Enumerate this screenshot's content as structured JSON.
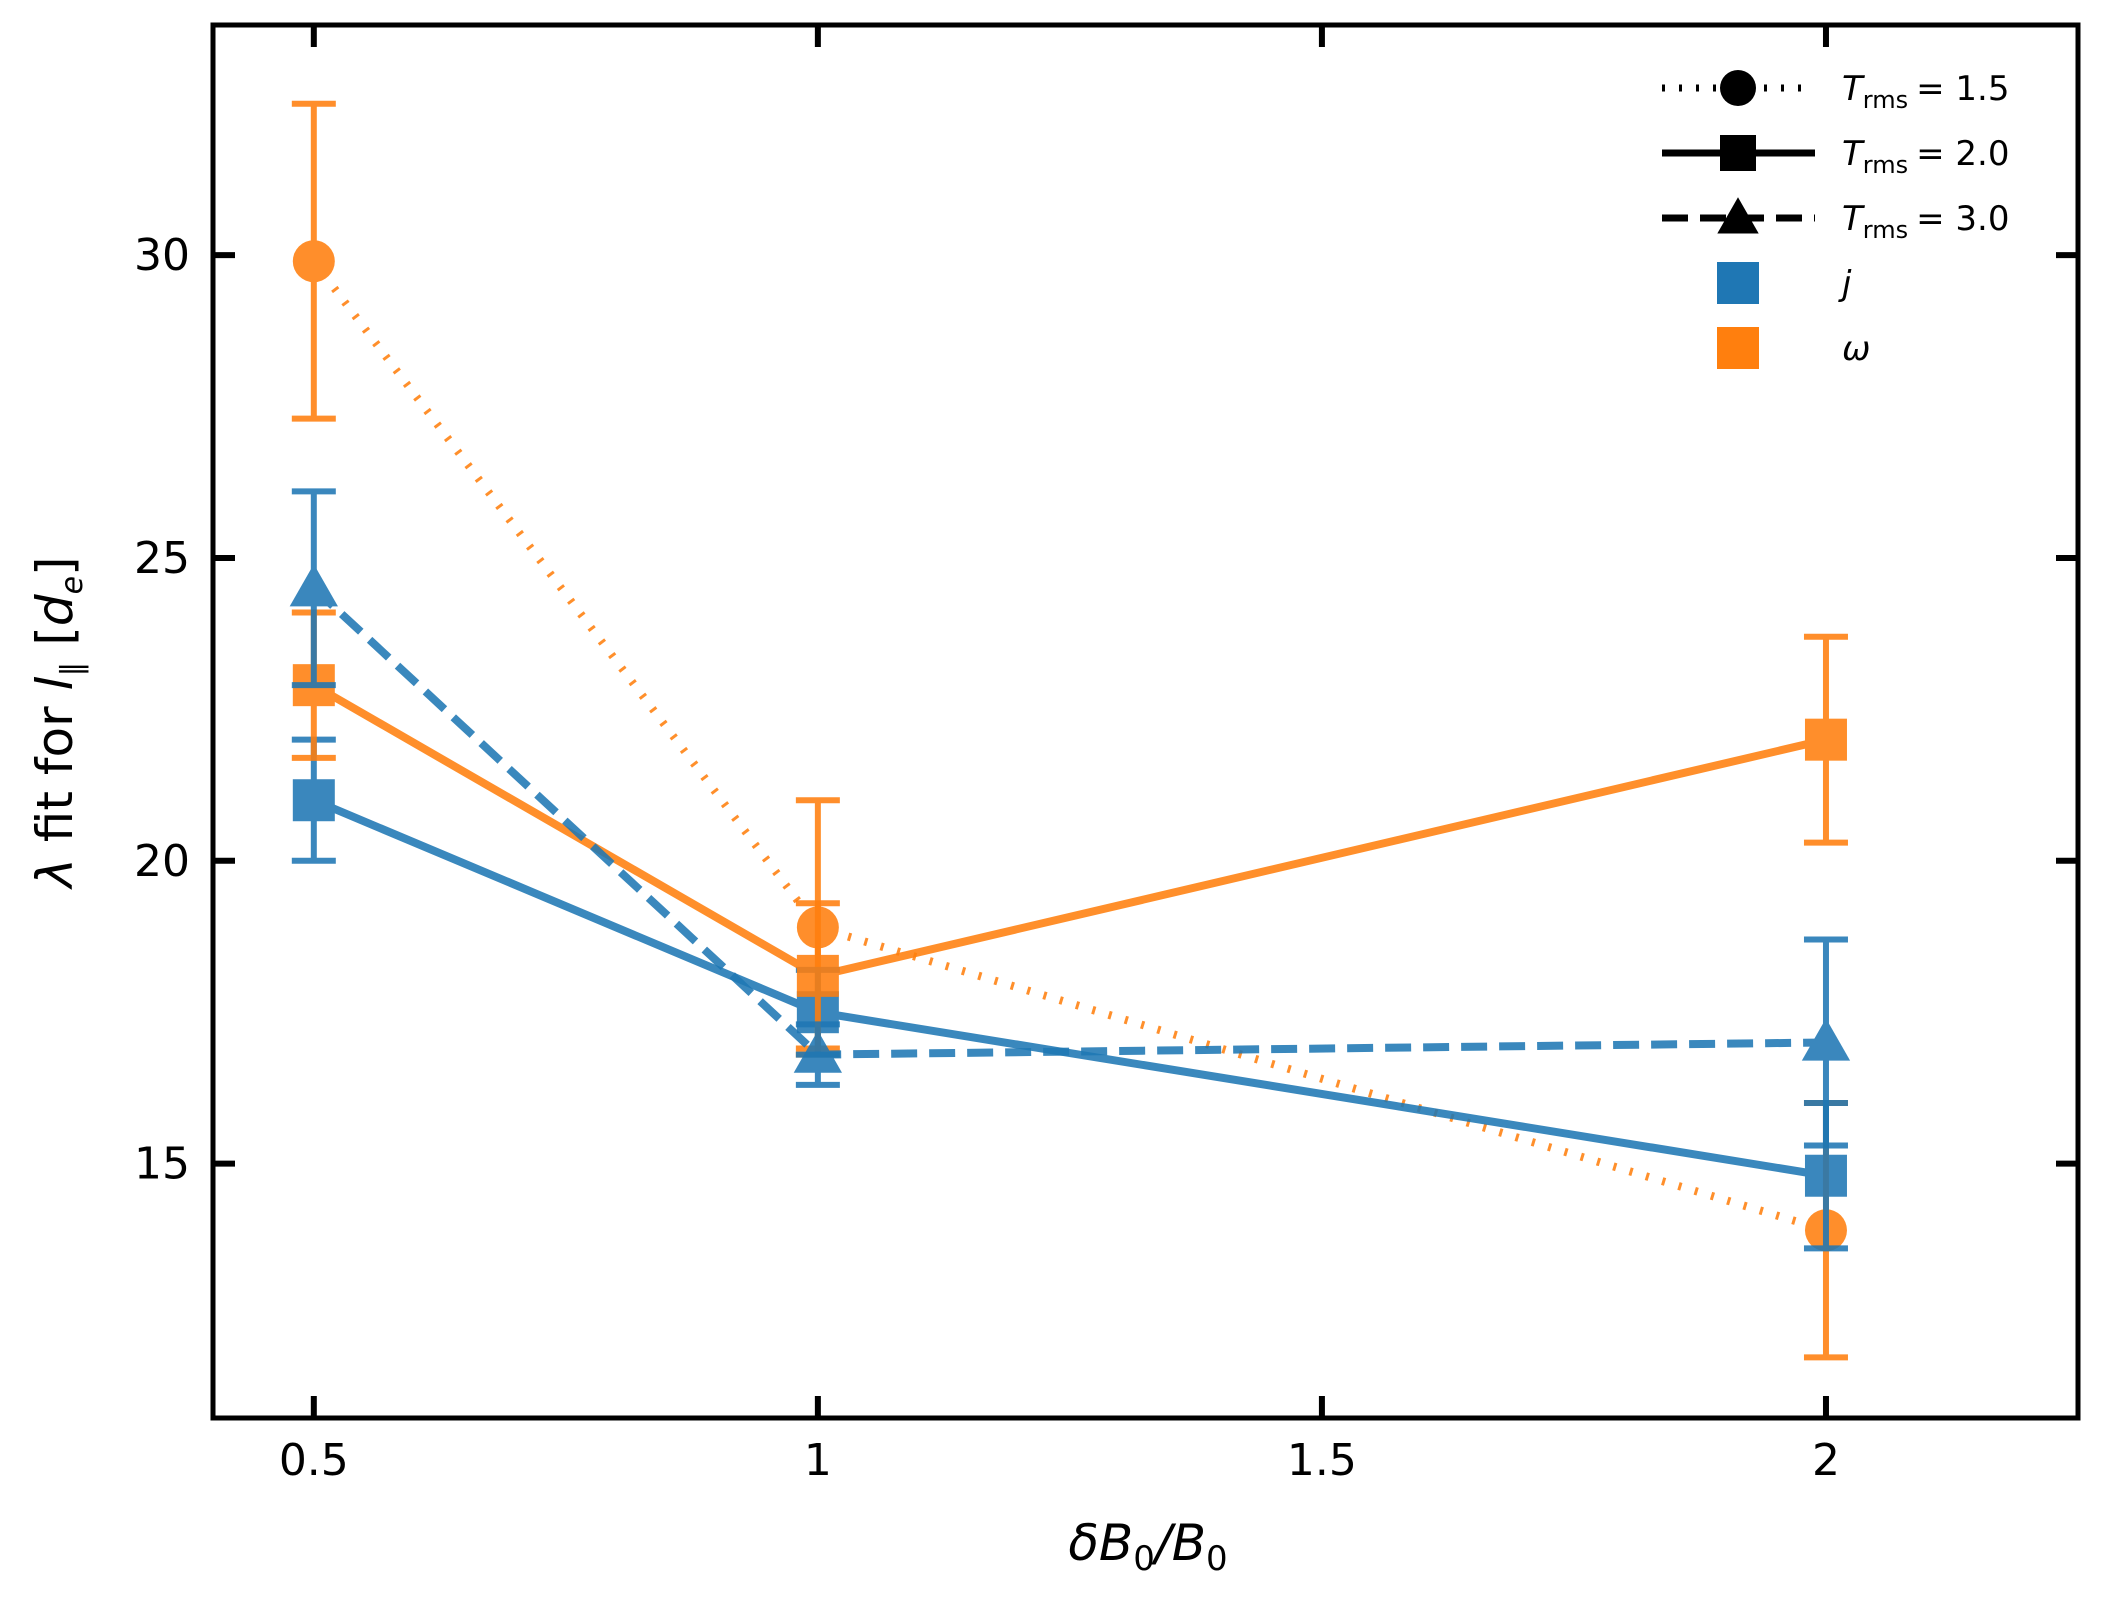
{
  "chart_data": {
    "type": "line",
    "xlabel": "δB0/B0",
    "ylabel": "λ fit for l∥ [de]",
    "xlim": [
      0.4,
      2.25
    ],
    "ylim": [
      10.8,
      33.8
    ],
    "xticks": [
      0.5,
      1,
      1.5,
      2
    ],
    "xtick_labels": [
      "0.5",
      "1",
      "1.5",
      "2"
    ],
    "yticks": [
      15,
      20,
      25,
      30
    ],
    "ytick_labels": [
      "15",
      "20",
      "25",
      "30"
    ],
    "grid": false,
    "legend_position": "top-right",
    "colors": {
      "j": "#1f77b4",
      "omega": "#ff7f0e"
    },
    "legend": [
      {
        "label": "T",
        "sub": "rms",
        "value": "= 1.5",
        "style": "dotted",
        "marker": "circle"
      },
      {
        "label": "T",
        "sub": "rms",
        "value": "= 2.0",
        "style": "solid",
        "marker": "square"
      },
      {
        "label": "T",
        "sub": "rms",
        "value": "= 3.0",
        "style": "dashed",
        "marker": "triangle"
      },
      {
        "label": "j",
        "style": "patch",
        "color": "#1f77b4"
      },
      {
        "label": "ω",
        "style": "patch",
        "color": "#ff7f0e"
      }
    ],
    "series": [
      {
        "name": "ω, Trms = 1.5",
        "quantity": "omega",
        "trms": 1.5,
        "style": "dotted",
        "marker": "circle",
        "x": [
          0.5,
          1,
          2
        ],
        "y": [
          29.9,
          18.9,
          13.9
        ],
        "err": [
          2.6,
          2.1,
          2.1
        ]
      },
      {
        "name": "j, Trms = 2.0",
        "quantity": "j",
        "trms": 2.0,
        "style": "solid",
        "marker": "square",
        "x": [
          0.5,
          1,
          2
        ],
        "y": [
          21.0,
          17.5,
          14.8
        ],
        "err": [
          1.0,
          0.7,
          1.2
        ]
      },
      {
        "name": "ω, Trms = 2.0",
        "quantity": "omega",
        "trms": 2.0,
        "style": "solid",
        "marker": "square",
        "x": [
          0.5,
          1,
          2
        ],
        "y": [
          22.9,
          18.1,
          22.0
        ],
        "err": [
          1.2,
          1.2,
          1.7
        ]
      },
      {
        "name": "j, Trms = 3.0",
        "quantity": "j",
        "trms": 3.0,
        "style": "dashed",
        "marker": "triangle",
        "x": [
          0.5,
          1,
          2
        ],
        "y": [
          24.5,
          16.8,
          17.0
        ],
        "err": [
          1.6,
          0.5,
          1.7
        ]
      }
    ]
  }
}
